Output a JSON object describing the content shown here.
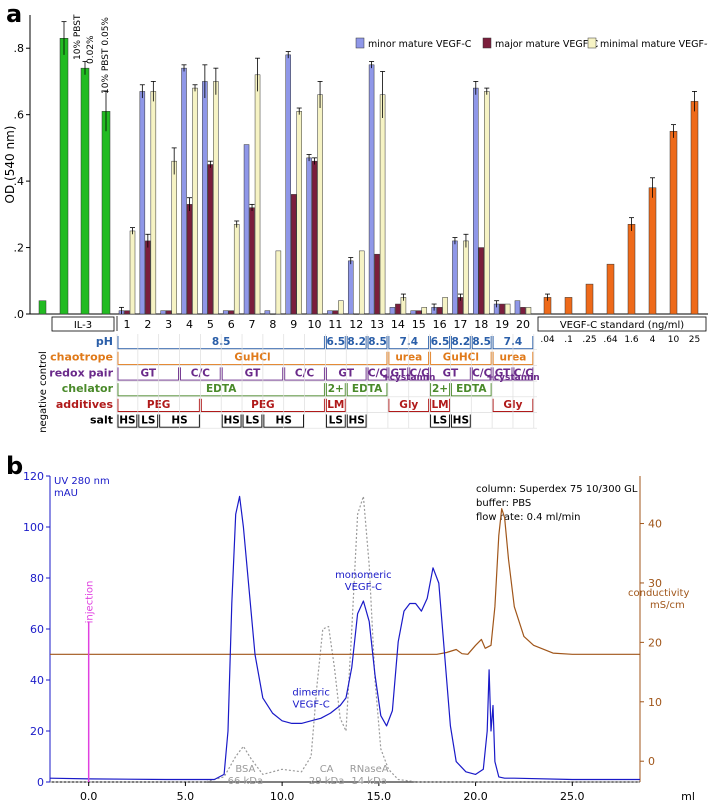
{
  "panel_labels": {
    "a": "a",
    "b": "b"
  },
  "colors": {
    "minor": "#8f97e8",
    "major": "#7b1e3c",
    "minimal": "#f6f3c4",
    "il3": "#22bb22",
    "standard": "#ee6a1a",
    "uv": "#1a1ac8",
    "conductivity": "#a0561a",
    "injection": "#e040e0",
    "marker": "#9a9a9a",
    "ph": "#2a5ea8",
    "chaotrope": "#e07a1a",
    "redox": "#6a2a8a",
    "chelator": "#4a8a2a",
    "additives": "#b01a1a"
  },
  "chart_data": [
    {
      "type": "bar",
      "panel": "a",
      "ylabel": "OD (540 nm)",
      "ylim": [
        0,
        0.9
      ],
      "yticks": [
        0,
        0.2,
        0.4,
        0.6,
        0.8
      ],
      "ytick_labels": [
        ".0",
        ".2",
        ".4",
        ".6",
        ".8"
      ],
      "legend": [
        "minor mature VEGF-C",
        "major mature VEGF-C",
        "minimal mature VEGF-C"
      ],
      "legend_position": "top-right",
      "negative_control": {
        "label": "negative control",
        "value": 0.04
      },
      "il3": {
        "label": "IL-3",
        "values": [
          0.83,
          0.74,
          0.61
        ],
        "errors": [
          0.05,
          0.02,
          0.06
        ],
        "annotations": [
          "10% PBST",
          "0.02%",
          "10% PBST 0.05%"
        ]
      },
      "conditions": [
        "1",
        "2",
        "3",
        "4",
        "5",
        "6",
        "7",
        "8",
        "9",
        "10",
        "11",
        "12",
        "13",
        "14",
        "15",
        "16",
        "17",
        "18",
        "19",
        "20"
      ],
      "series": [
        {
          "key": "minor",
          "name": "minor mature VEGF-C",
          "values": [
            0.01,
            0.67,
            0.01,
            0.74,
            0.7,
            0.01,
            0.51,
            0.01,
            0.78,
            0.47,
            0.01,
            0.16,
            0.75,
            0.02,
            0.01,
            0.02,
            0.22,
            0.68,
            0.03,
            0.04
          ],
          "errors": [
            0.01,
            0.02,
            0,
            0.01,
            0.05,
            0,
            0,
            0,
            0.01,
            0.01,
            0,
            0.01,
            0.01,
            0,
            0,
            0.01,
            0.01,
            0.02,
            0.01,
            0
          ]
        },
        {
          "key": "major",
          "name": "major mature VEGF-C",
          "values": [
            0.01,
            0.22,
            0.01,
            0.33,
            0.45,
            0.01,
            0.32,
            0,
            0.36,
            0.46,
            0.01,
            0,
            0.18,
            0.03,
            0.01,
            0.02,
            0.05,
            0.2,
            0.03,
            0.02
          ],
          "errors": [
            0,
            0.02,
            0,
            0.02,
            0.01,
            0,
            0.01,
            0,
            0,
            0.01,
            0,
            0,
            0,
            0,
            0,
            0,
            0.01,
            0,
            0,
            0
          ]
        },
        {
          "key": "minimal",
          "name": "minimal mature VEGF-C",
          "values": [
            0.25,
            0.67,
            0.46,
            0.68,
            0.7,
            0.27,
            0.72,
            0.19,
            0.61,
            0.66,
            0.04,
            0.19,
            0.66,
            0.05,
            0.02,
            0.05,
            0.22,
            0.67,
            0.03,
            0.02
          ],
          "errors": [
            0.01,
            0.03,
            0.04,
            0.01,
            0.04,
            0.01,
            0.05,
            0,
            0.01,
            0.04,
            0,
            0,
            0.07,
            0.01,
            0,
            0,
            0.02,
            0.01,
            0,
            0
          ]
        }
      ],
      "standard": {
        "label": "VEGF-C standard (ng/ml)",
        "concentrations": [
          ".04",
          ".1",
          ".25",
          ".64",
          "1.6",
          "4",
          "10",
          "25"
        ],
        "values": [
          0.05,
          0.05,
          0.09,
          0.15,
          0.27,
          0.38,
          0.55,
          0.64
        ],
        "errors": [
          0.01,
          0,
          0,
          0,
          0.02,
          0.03,
          0.02,
          0.03
        ]
      },
      "conditions_table": {
        "rows": [
          {
            "label": "pH",
            "color_key": "ph",
            "entries": [
              {
                "from": 1,
                "to": 10,
                "text": "8.5"
              },
              {
                "from": 11,
                "to": 11,
                "text": "6.5"
              },
              {
                "from": 12,
                "to": 12,
                "text": "8.2"
              },
              {
                "from": 13,
                "to": 13,
                "text": "8.5"
              },
              {
                "from": 14,
                "to": 15,
                "text": "7.4"
              },
              {
                "from": 16,
                "to": 16,
                "text": "6.5"
              },
              {
                "from": 17,
                "to": 17,
                "text": "8.2"
              },
              {
                "from": 18,
                "to": 18,
                "text": "8.5"
              },
              {
                "from": 19,
                "to": 20,
                "text": "7.4"
              }
            ]
          },
          {
            "label": "chaotrope",
            "color_key": "chaotrope",
            "entries": [
              {
                "from": 1,
                "to": 13,
                "text": "GuHCl"
              },
              {
                "from": 14,
                "to": 15,
                "text": "urea"
              },
              {
                "from": 16,
                "to": 18,
                "text": "GuHCl"
              },
              {
                "from": 19,
                "to": 20,
                "text": "urea"
              }
            ]
          },
          {
            "label": "redox pair",
            "color_key": "redox",
            "entries": [
              {
                "from": 1,
                "to": 3,
                "text": "GT"
              },
              {
                "from": 4,
                "to": 5,
                "text": "C/C"
              },
              {
                "from": 6,
                "to": 8,
                "text": "GT"
              },
              {
                "from": 9,
                "to": 10,
                "text": "C/C"
              },
              {
                "from": 11,
                "to": 12,
                "text": "GT"
              },
              {
                "from": 13,
                "to": 13,
                "text": "C/C"
              },
              {
                "from": 14,
                "to": 14,
                "text": "GT"
              },
              {
                "from": 15,
                "to": 15,
                "text": "C/C"
              },
              {
                "from": 16,
                "to": 17,
                "text": "GT"
              },
              {
                "from": 18,
                "to": 18,
                "text": "C/C"
              },
              {
                "from": 19,
                "to": 19,
                "text": "GT"
              },
              {
                "from": 20,
                "to": 20,
                "text": "C/C"
              }
            ]
          },
          {
            "label": "chelator",
            "color_key": "chelator",
            "entries": [
              {
                "from": 1,
                "to": 10,
                "text": "EDTA"
              },
              {
                "from": 11,
                "to": 11,
                "text": "2+"
              },
              {
                "from": 12,
                "to": 13,
                "text": "EDTA"
              },
              {
                "from": 16,
                "to": 16,
                "text": "2+"
              },
              {
                "from": 17,
                "to": 18,
                "text": "EDTA"
              }
            ]
          },
          {
            "label": "additives",
            "color_key": "additives",
            "entries": [
              {
                "from": 1,
                "to": 4,
                "text": "PEG"
              },
              {
                "from": 5,
                "to": 10,
                "text": "PEG"
              },
              {
                "from": 11,
                "to": 11,
                "text": "LM"
              },
              {
                "from": 14,
                "to": 15,
                "text": "Gly"
              },
              {
                "from": 16,
                "to": 16,
                "text": "LM"
              },
              {
                "from": 19,
                "to": 20,
                "text": "Gly"
              }
            ]
          },
          {
            "label": "salt",
            "color_key": "",
            "entries": [
              {
                "from": 1,
                "to": 1,
                "text": "HS"
              },
              {
                "from": 2,
                "to": 2,
                "text": "LS"
              },
              {
                "from": 3,
                "to": 4,
                "text": "HS"
              },
              {
                "from": 6,
                "to": 6,
                "text": "HS"
              },
              {
                "from": 7,
                "to": 7,
                "text": "LS"
              },
              {
                "from": 8,
                "to": 9,
                "text": "HS"
              },
              {
                "from": 11,
                "to": 11,
                "text": "LS"
              },
              {
                "from": 12,
                "to": 12,
                "text": "HS"
              },
              {
                "from": 16,
                "to": 16,
                "text": "LS"
              },
              {
                "from": 17,
                "to": 17,
                "text": "HS"
              }
            ]
          }
        ],
        "cystamin_notes": [
          {
            "at": 14,
            "text": "+cystamin"
          },
          {
            "at": 19,
            "text": "+cystamin"
          }
        ]
      }
    },
    {
      "type": "line",
      "panel": "b",
      "ylabel": "UV 280 nm",
      "yunit": "mAU",
      "y2label": "conductivity",
      "y2unit": "mS/cm",
      "xunit": "ml",
      "xlim": [
        -2,
        28.5
      ],
      "ylim": [
        0,
        120
      ],
      "y2lim": [
        -3.5,
        48
      ],
      "xticks": [
        0,
        5,
        10,
        15,
        20,
        25
      ],
      "xtick_labels": [
        "0.0",
        "5.0",
        "10.0",
        "15.0",
        "20.0",
        "25.0"
      ],
      "yticks": [
        0,
        20,
        40,
        60,
        80,
        100,
        120
      ],
      "y2ticks": [
        0,
        10,
        20,
        30,
        40
      ],
      "info": [
        "column: Superdex 75 10/300 GL",
        "buffer: PBS",
        "flow rate: 0.4 ml/min"
      ],
      "injection": {
        "label": "injection",
        "x": 0,
        "top": 63
      },
      "uv_trace": {
        "x": [
          -2,
          0,
          4,
          6.5,
          7,
          7.2,
          7.4,
          7.6,
          7.8,
          8,
          8.3,
          8.6,
          9,
          9.5,
          10,
          10.5,
          11,
          11.5,
          12,
          12.5,
          13,
          13.3,
          13.6,
          13.9,
          14.2,
          14.5,
          14.8,
          15.1,
          15.4,
          15.7,
          16,
          16.3,
          16.6,
          16.9,
          17.2,
          17.5,
          17.8,
          18.1,
          18.4,
          18.7,
          19,
          19.5,
          20,
          20.4,
          20.6,
          20.7,
          20.8,
          20.9,
          21,
          21.2,
          21.5,
          22,
          25,
          28.5
        ],
        "y": [
          1.5,
          1.2,
          1,
          1,
          3,
          20,
          70,
          105,
          112,
          100,
          75,
          50,
          33,
          27,
          24,
          23,
          23,
          24,
          25,
          27,
          30,
          33,
          45,
          66,
          71,
          63,
          42,
          26,
          22,
          28,
          55,
          67,
          70,
          70,
          67,
          72,
          84,
          78,
          50,
          22,
          8,
          4,
          3,
          5,
          20,
          44,
          20,
          30,
          8,
          2,
          1.5,
          1.5,
          1,
          1
        ]
      },
      "conductivity_trace": {
        "x": [
          -2,
          18,
          18.5,
          19,
          19.3,
          19.6,
          20,
          20.3,
          20.5,
          20.8,
          21,
          21.2,
          21.35,
          21.5,
          21.7,
          22,
          22.5,
          23,
          24,
          25,
          28.5
        ],
        "y": [
          18,
          18,
          18.3,
          18.8,
          18.1,
          18,
          19.5,
          20.5,
          19,
          19.5,
          26,
          38,
          42.5,
          41,
          34,
          26,
          21,
          19.5,
          18.2,
          18,
          18
        ]
      },
      "marker_trace": {
        "x": [
          -2,
          6,
          7,
          7.6,
          8,
          8.4,
          9,
          10,
          11,
          11.5,
          11.8,
          12.1,
          12.4,
          12.7,
          13,
          13.3,
          13.6,
          13.9,
          14.2,
          14.5,
          14.8,
          15.1,
          15.5,
          16,
          17,
          28.5
        ],
        "y": [
          0,
          0,
          2,
          10,
          14,
          9,
          3,
          5,
          4,
          10,
          38,
          60,
          61,
          45,
          25,
          20,
          60,
          105,
          112,
          85,
          40,
          13,
          5,
          1,
          0,
          0
        ]
      },
      "annotations": [
        {
          "text": "dimeric",
          "text2": "VEGF-C",
          "x": 11.5,
          "y": 34,
          "color_key": "uv"
        },
        {
          "text": "monomeric",
          "text2": "VEGF-C",
          "x": 14.2,
          "y": 80,
          "color_key": "uv"
        },
        {
          "text": "BSA",
          "text2": "66 kDa",
          "x": 8.1,
          "y": 4,
          "color_key": "marker"
        },
        {
          "text": "CA",
          "text2": "29 kDa",
          "x": 12.3,
          "y": 4,
          "color_key": "marker"
        },
        {
          "text": "RNaseA",
          "text2": "14 kDa",
          "x": 14.5,
          "y": 4,
          "color_key": "marker"
        }
      ]
    }
  ]
}
